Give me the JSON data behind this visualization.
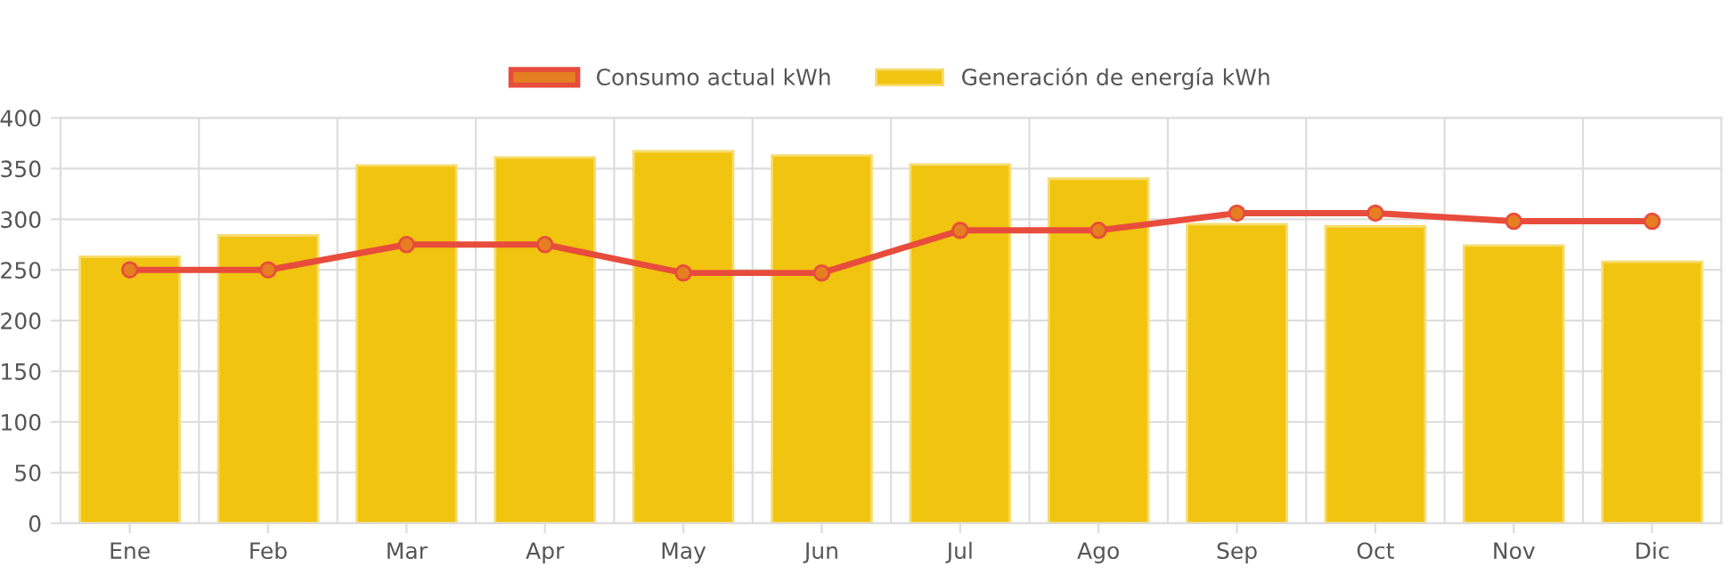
{
  "chart_data": {
    "type": "bar",
    "categories": [
      "Ene",
      "Feb",
      "Mar",
      "Apr",
      "May",
      "Jun",
      "Jul",
      "Ago",
      "Sep",
      "Oct",
      "Nov",
      "Dic"
    ],
    "series": [
      {
        "name": "Consumo actual kWh",
        "type": "line",
        "color": "#e74c3c",
        "values": [
          250,
          250,
          275,
          275,
          247,
          247,
          289,
          289,
          306,
          306,
          298,
          298
        ]
      },
      {
        "name": "Generación de energía kWh",
        "color": "#f1c40f",
        "values": [
          263,
          284,
          353,
          361,
          367,
          363,
          354,
          340,
          295,
          293,
          274,
          258
        ]
      }
    ],
    "ylim": [
      0,
      400
    ],
    "yticks": [
      0,
      50,
      100,
      150,
      200,
      250,
      300,
      350,
      400
    ],
    "grid": true,
    "legend": "top",
    "marker": "circle"
  }
}
